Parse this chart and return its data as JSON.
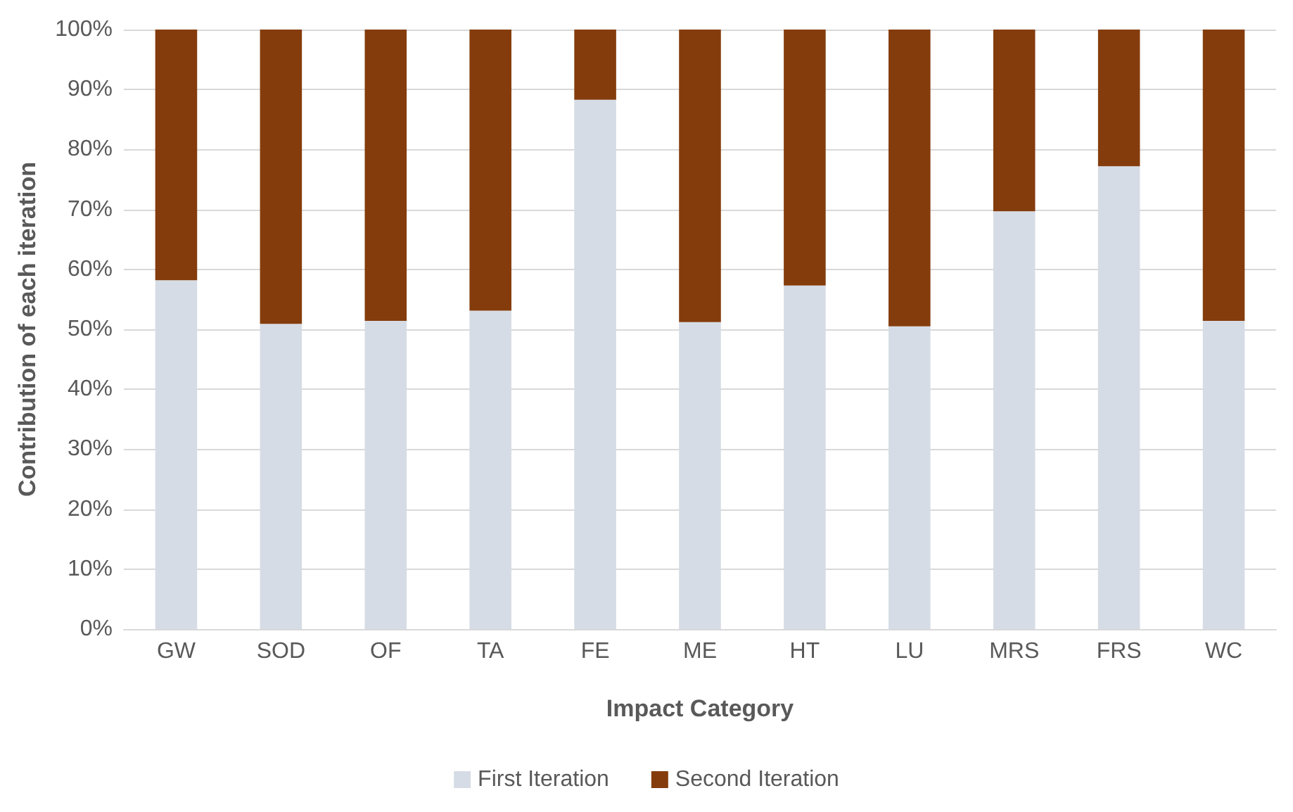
{
  "chart_data": {
    "type": "bar",
    "stacked": true,
    "xlabel": "Impact Category",
    "ylabel": "Contribution of each iteration",
    "categories": [
      "GW",
      "SOD",
      "OF",
      "TA",
      "FE",
      "ME",
      "HT",
      "LU",
      "MRS",
      "FRS",
      "WC"
    ],
    "series": [
      {
        "name": "First Iteration",
        "color": "#d6dce5",
        "values": [
          58.2,
          50.9,
          51.4,
          53.1,
          88.3,
          51.2,
          57.3,
          50.5,
          69.7,
          77.2,
          51.4
        ]
      },
      {
        "name": "Second Iteration",
        "color": "#843c0c",
        "values": [
          41.8,
          49.1,
          48.6,
          46.9,
          11.7,
          48.8,
          42.7,
          49.5,
          30.3,
          22.8,
          48.6
        ]
      }
    ],
    "ylim": [
      0,
      100
    ],
    "yticks": [
      {
        "value": 0,
        "label": "0%"
      },
      {
        "value": 10,
        "label": "10%"
      },
      {
        "value": 20,
        "label": "20%"
      },
      {
        "value": 30,
        "label": "30%"
      },
      {
        "value": 40,
        "label": "40%"
      },
      {
        "value": 50,
        "label": "50%"
      },
      {
        "value": 60,
        "label": "60%"
      },
      {
        "value": 70,
        "label": "70%"
      },
      {
        "value": 80,
        "label": "80%"
      },
      {
        "value": 90,
        "label": "90%"
      },
      {
        "value": 100,
        "label": "100%"
      }
    ],
    "grid": "y",
    "legend": "bottom"
  }
}
